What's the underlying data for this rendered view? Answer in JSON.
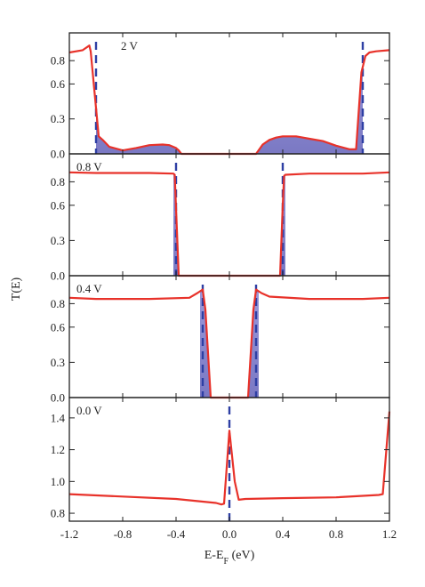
{
  "chart_data": {
    "type": "line",
    "xlabel": "E-E",
    "xlabel_sub": "F",
    "xlabel_unit": " (eV)",
    "ylabel": "T(E)",
    "xlim": [
      -1.2,
      1.2
    ],
    "x_ticks": [
      -1.2,
      -0.8,
      -0.4,
      0.0,
      0.4,
      0.8,
      1.2
    ],
    "x_tick_labels": [
      "-1.2",
      "-0.8",
      "-0.4",
      "0.0",
      "0.4",
      "0.8",
      "1.2"
    ],
    "colors": {
      "curve": "#e8322a",
      "dashed_lines": "#2e3fa4",
      "shaded_window": "#7a78c6"
    },
    "panels": [
      {
        "label": "2 V",
        "ylim": [
          0.0,
          1.0
        ],
        "y_ticks": [
          0.0,
          0.3,
          0.6,
          0.8
        ],
        "y_tick_labels": [
          "0.0",
          "0.3",
          "0.6",
          "0.8"
        ],
        "bias_window_lines": [
          -1.0,
          1.0
        ],
        "shaded_regions": [
          [
            -1.0,
            1.0
          ]
        ],
        "series": [
          {
            "x": [
              -1.2,
              -1.1,
              -1.05,
              -1.04,
              -0.98,
              -0.95,
              -0.9,
              -0.8,
              -0.7,
              -0.6,
              -0.5,
              -0.45,
              -0.4,
              -0.38,
              -0.36,
              0.2,
              0.25,
              0.3,
              0.35,
              0.4,
              0.5,
              0.6,
              0.7,
              0.8,
              0.9,
              0.95,
              0.99,
              1.02,
              1.05,
              1.1,
              1.2
            ],
            "y": [
              0.87,
              0.89,
              0.93,
              0.88,
              0.15,
              0.12,
              0.06,
              0.03,
              0.05,
              0.075,
              0.08,
              0.075,
              0.05,
              0.03,
              0.0,
              0.0,
              0.08,
              0.12,
              0.14,
              0.15,
              0.15,
              0.13,
              0.11,
              0.07,
              0.04,
              0.04,
              0.7,
              0.84,
              0.87,
              0.88,
              0.89
            ]
          }
        ]
      },
      {
        "label": "0.8 V",
        "ylim": [
          0.0,
          1.0
        ],
        "y_ticks": [
          0.0,
          0.3,
          0.6,
          0.8
        ],
        "y_tick_labels": [
          "0.0",
          "0.3",
          "0.6",
          "0.8"
        ],
        "bias_window_lines": [
          -0.4,
          0.4
        ],
        "shaded_regions": [
          [
            -0.42,
            -0.38
          ],
          [
            0.38,
            0.42
          ]
        ],
        "series": [
          {
            "x": [
              -1.2,
              -1.0,
              -0.6,
              -0.42,
              -0.41,
              -0.38,
              -0.36,
              0.36,
              0.38,
              0.4,
              0.41,
              0.42,
              0.6,
              1.0,
              1.2
            ],
            "y": [
              0.88,
              0.875,
              0.875,
              0.87,
              0.86,
              0.0,
              0.0,
              0.0,
              0.0,
              0.6,
              0.85,
              0.86,
              0.87,
              0.87,
              0.88
            ]
          }
        ]
      },
      {
        "label": "0.4 V",
        "ylim": [
          0.0,
          1.0
        ],
        "y_ticks": [
          0.0,
          0.3,
          0.6,
          0.8
        ],
        "y_tick_labels": [
          "0.0",
          "0.3",
          "0.6",
          "0.8"
        ],
        "bias_window_lines": [
          -0.2,
          0.2
        ],
        "shaded_regions": [
          [
            -0.22,
            -0.14
          ],
          [
            0.14,
            0.22
          ]
        ],
        "series": [
          {
            "x": [
              -1.2,
              -1.0,
              -0.6,
              -0.3,
              -0.24,
              -0.2,
              -0.18,
              -0.14,
              -0.1,
              0.1,
              0.14,
              0.18,
              0.2,
              0.24,
              0.3,
              0.6,
              1.0,
              1.2
            ],
            "y": [
              0.85,
              0.84,
              0.84,
              0.85,
              0.89,
              0.92,
              0.75,
              0.0,
              0.0,
              0.0,
              0.0,
              0.75,
              0.92,
              0.89,
              0.86,
              0.84,
              0.84,
              0.85
            ]
          }
        ]
      },
      {
        "label": "0.0 V",
        "ylim": [
          0.75,
          1.5
        ],
        "y_ticks": [
          0.8,
          1.0,
          1.2,
          1.4
        ],
        "y_tick_labels": [
          "0.8",
          "1.0",
          "1.2",
          "1.4"
        ],
        "bias_window_lines": [
          0.0
        ],
        "shaded_regions": [],
        "series": [
          {
            "x": [
              -1.2,
              -0.8,
              -0.4,
              -0.1,
              -0.06,
              -0.04,
              0.0,
              0.04,
              0.07,
              0.12,
              0.4,
              0.8,
              1.12,
              1.15,
              1.2
            ],
            "y": [
              0.92,
              0.905,
              0.89,
              0.865,
              0.855,
              0.86,
              1.32,
              1.0,
              0.885,
              0.89,
              0.895,
              0.9,
              0.915,
              0.92,
              1.44
            ]
          }
        ]
      }
    ]
  }
}
